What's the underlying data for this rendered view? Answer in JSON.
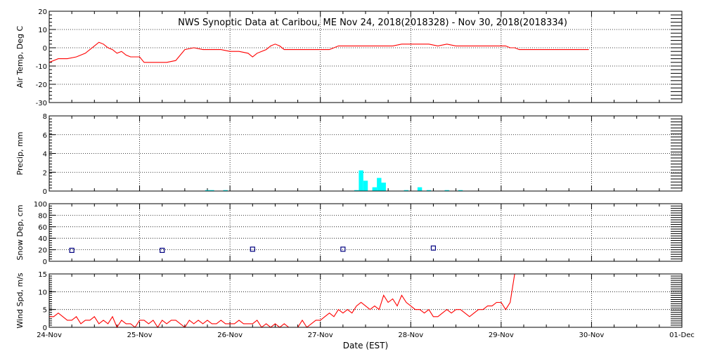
{
  "title": "NWS Synoptic Data at Caribou, ME    Nov 24, 2018(2018328) - Nov 30, 2018(2018334)",
  "xlabel": "Date (EST)",
  "x_ticks": [
    "24-Nov",
    "25-Nov",
    "26-Nov",
    "27-Nov",
    "28-Nov",
    "29-Nov",
    "30-Nov",
    "01-Dec"
  ],
  "colors": {
    "air_temp": "#ff0000",
    "precip": "#00ffff",
    "snow_depth": "#000080",
    "wind": "#ff0000",
    "frame": "#000000",
    "grid": "#000000"
  },
  "chart_data": [
    {
      "type": "line",
      "ylabel": "Air Temp, Deg C",
      "x_unit": "days since 24-Nov 00:00 EST",
      "ylim": [
        -30,
        20
      ],
      "yticks": [
        -30,
        -20,
        -10,
        0,
        10,
        20
      ],
      "grid": true,
      "series": [
        {
          "name": "Air Temp",
          "x": [
            0.0,
            0.1,
            0.2,
            0.3,
            0.4,
            0.5,
            0.55,
            0.6,
            0.65,
            0.7,
            0.75,
            0.8,
            0.85,
            0.9,
            0.95,
            1.0,
            1.05,
            1.1,
            1.15,
            1.2,
            1.3,
            1.4,
            1.5,
            1.6,
            1.7,
            1.8,
            1.9,
            2.0,
            2.1,
            2.2,
            2.25,
            2.3,
            2.35,
            2.4,
            2.45,
            2.5,
            2.55,
            2.6,
            2.7,
            2.8,
            2.9,
            3.0,
            3.1,
            3.2,
            3.3,
            3.4,
            3.5,
            3.6,
            3.7,
            3.8,
            3.9,
            4.0,
            4.1,
            4.2,
            4.3,
            4.4,
            4.5,
            4.6,
            4.7,
            4.8,
            4.9,
            5.0,
            5.05,
            5.1,
            5.15,
            5.2,
            5.3,
            5.5,
            5.7,
            5.9,
            5.97
          ],
          "y": [
            -8,
            -6,
            -6,
            -5,
            -3,
            1,
            3,
            2,
            0,
            -1,
            -3,
            -2,
            -4,
            -5,
            -5,
            -5,
            -8,
            -8,
            -8,
            -8,
            -8,
            -7,
            -1,
            0,
            -1,
            -1,
            -1,
            -2,
            -2,
            -3,
            -5,
            -3,
            -2,
            -1,
            1,
            2,
            1,
            -1,
            -1,
            -1,
            -1,
            -1,
            -1,
            1,
            1,
            1,
            1,
            1,
            1,
            1,
            2,
            2,
            2,
            2,
            1,
            2,
            1,
            1,
            1,
            1,
            1,
            1,
            1,
            0,
            0,
            -1,
            -1,
            -1,
            -1,
            -1,
            -1
          ]
        }
      ]
    },
    {
      "type": "bar",
      "ylabel": "Precip, mm",
      "x_unit": "days since 24-Nov 00:00 EST",
      "ylim": [
        0,
        8
      ],
      "yticks": [
        0,
        2,
        4,
        6,
        8
      ],
      "grid": true,
      "series": [
        {
          "name": "Precip",
          "x": [
            1.75,
            1.8,
            1.95,
            3.4,
            3.45,
            3.5,
            3.6,
            3.65,
            3.7,
            3.95,
            4.1,
            4.2,
            4.4,
            4.55
          ],
          "y": [
            0.1,
            0.1,
            0.1,
            0.1,
            2.2,
            1.1,
            0.4,
            1.4,
            0.9,
            0.1,
            0.4,
            0.1,
            0.1,
            0.1
          ]
        }
      ]
    },
    {
      "type": "scatter",
      "ylabel": "Snow Dep, cm",
      "x_unit": "days since 24-Nov 00:00 EST",
      "ylim": [
        0,
        100
      ],
      "yticks": [
        0,
        20,
        40,
        60,
        80,
        100
      ],
      "grid": true,
      "series": [
        {
          "name": "Snow Depth",
          "x": [
            0.25,
            1.25,
            2.25,
            3.25,
            4.25
          ],
          "y": [
            19,
            19,
            21,
            21,
            23
          ]
        }
      ]
    },
    {
      "type": "line",
      "ylabel": "Wind Spd, m/s",
      "x_unit": "days since 24-Nov 00:00 EST",
      "ylim": [
        0,
        15
      ],
      "yticks": [
        0,
        5,
        10,
        15
      ],
      "grid": true,
      "series": [
        {
          "name": "Wind Speed",
          "x": [
            0.0,
            0.05,
            0.1,
            0.15,
            0.2,
            0.25,
            0.3,
            0.35,
            0.4,
            0.45,
            0.5,
            0.55,
            0.6,
            0.65,
            0.7,
            0.75,
            0.8,
            0.85,
            0.9,
            0.95,
            1.0,
            1.05,
            1.1,
            1.15,
            1.2,
            1.25,
            1.3,
            1.35,
            1.4,
            1.45,
            1.5,
            1.55,
            1.6,
            1.65,
            1.7,
            1.75,
            1.8,
            1.85,
            1.9,
            1.95,
            2.0,
            2.05,
            2.1,
            2.15,
            2.2,
            2.25,
            2.3,
            2.35,
            2.4,
            2.45,
            2.5,
            2.55,
            2.6,
            2.65,
            2.7,
            2.75,
            2.8,
            2.85,
            2.9,
            2.95,
            3.0,
            3.05,
            3.1,
            3.15,
            3.2,
            3.25,
            3.3,
            3.35,
            3.4,
            3.45,
            3.5,
            3.55,
            3.6,
            3.65,
            3.7,
            3.75,
            3.8,
            3.85,
            3.9,
            3.95,
            4.0,
            4.05,
            4.1,
            4.15,
            4.2,
            4.25,
            4.3,
            4.35,
            4.4,
            4.45,
            4.5,
            4.55,
            4.6,
            4.65,
            4.7,
            4.75,
            4.8,
            4.85,
            4.9,
            4.95,
            5.0,
            5.05,
            5.1,
            5.15,
            5.18
          ],
          "y": [
            3,
            3,
            4,
            3,
            2,
            2,
            3,
            1,
            2,
            2,
            3,
            1,
            2,
            1,
            3,
            0,
            2,
            1,
            1,
            0,
            2,
            2,
            1,
            2,
            0,
            2,
            1,
            2,
            2,
            1,
            0,
            2,
            1,
            2,
            1,
            2,
            1,
            1,
            2,
            1,
            1,
            1,
            2,
            1,
            1,
            1,
            2,
            0,
            1,
            0,
            1,
            0,
            1,
            0,
            0,
            0,
            2,
            0,
            1,
            2,
            2,
            3,
            4,
            3,
            5,
            4,
            5,
            4,
            6,
            7,
            6,
            5,
            6,
            5,
            9,
            7,
            8,
            6,
            9,
            7,
            6,
            5,
            5,
            4,
            5,
            3,
            3,
            4,
            5,
            4,
            5,
            5,
            4,
            3,
            4,
            5,
            5,
            6,
            6,
            7,
            7,
            5,
            7,
            15,
            15
          ]
        }
      ]
    }
  ]
}
